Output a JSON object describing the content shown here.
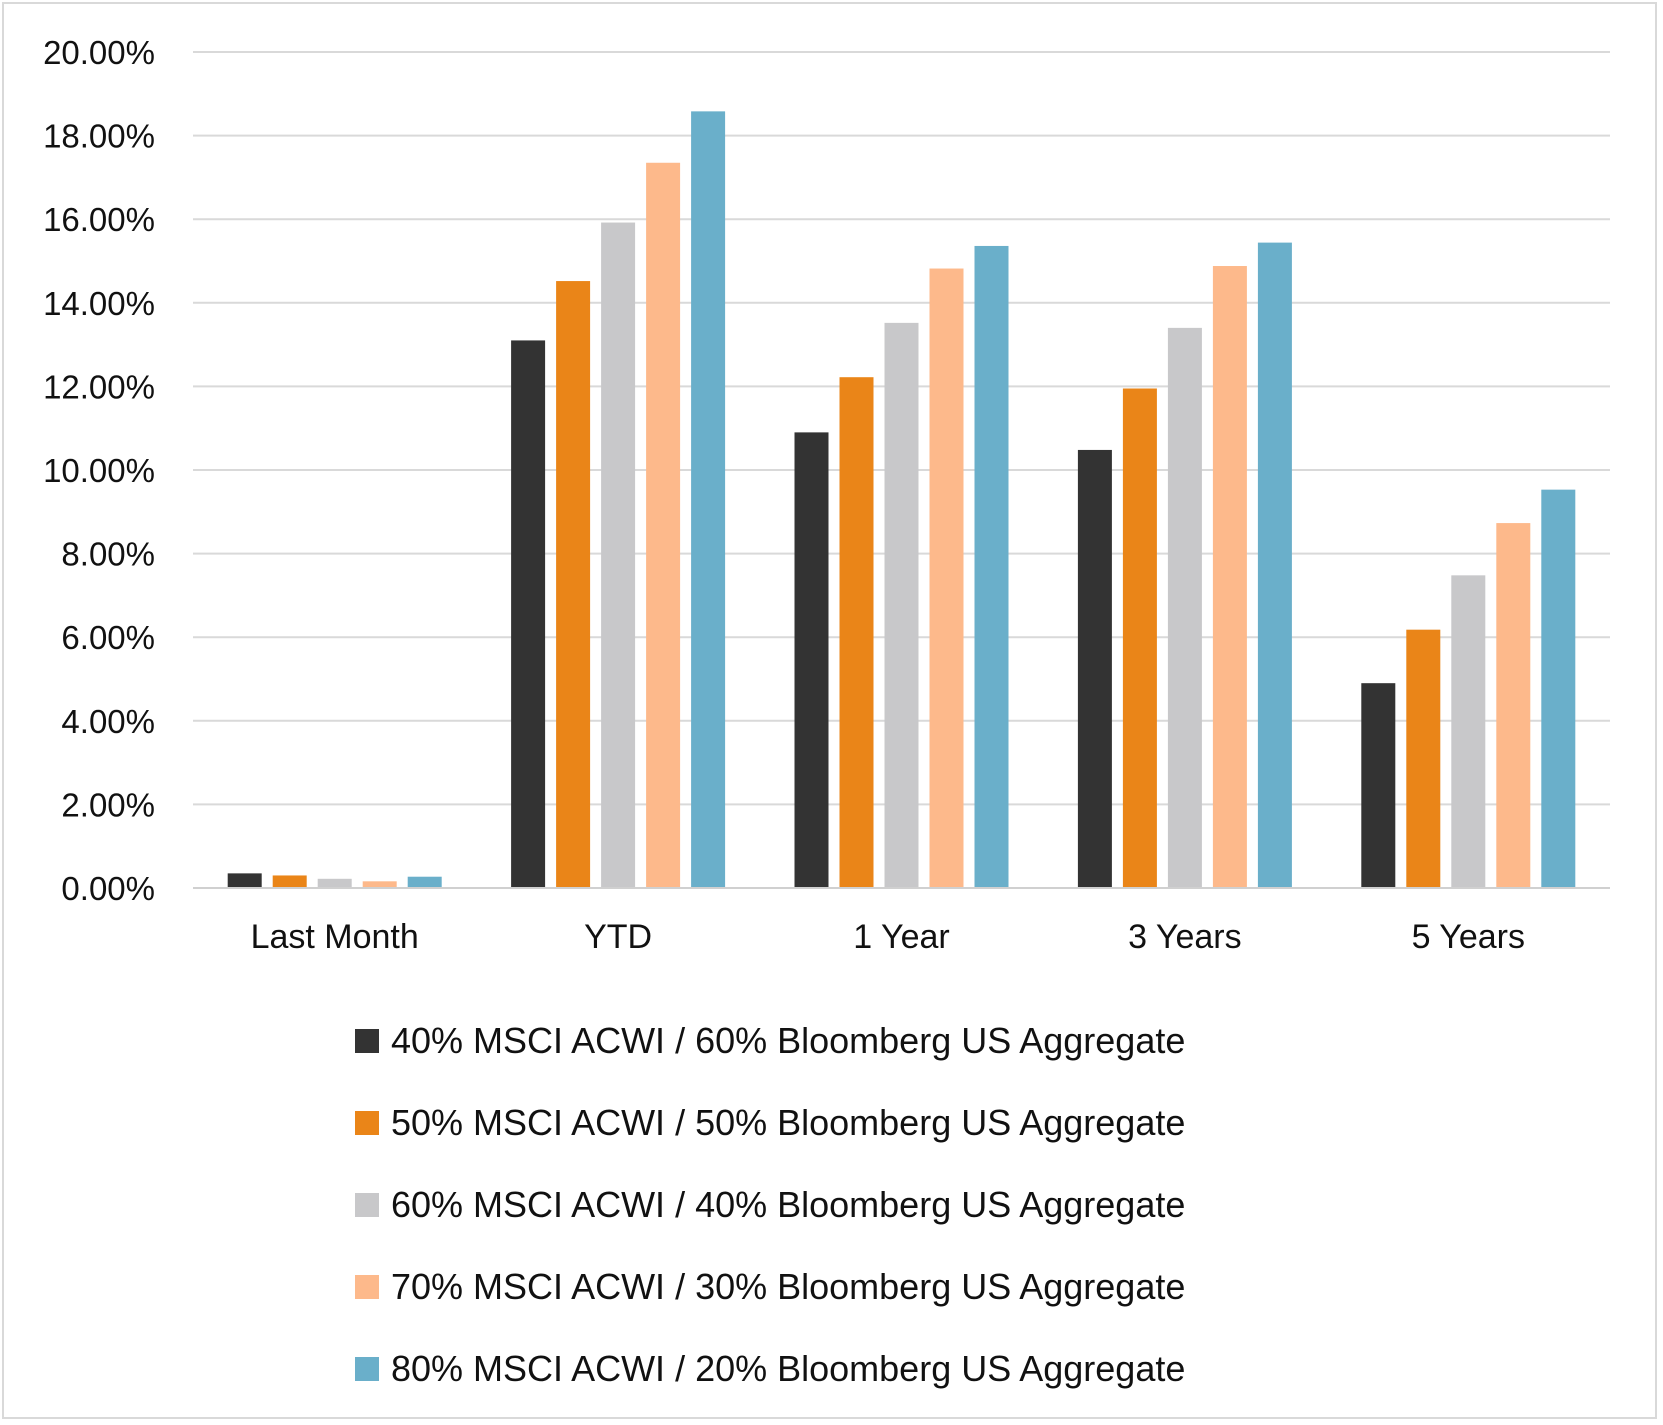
{
  "chart_data": {
    "type": "bar",
    "title": "",
    "xlabel": "",
    "ylabel": "",
    "ylim": [
      0,
      20
    ],
    "y_ticks": [
      "0.00%",
      "2.00%",
      "4.00%",
      "6.00%",
      "8.00%",
      "10.00%",
      "12.00%",
      "14.00%",
      "16.00%",
      "18.00%",
      "20.00%"
    ],
    "grid": true,
    "legend_position": "bottom",
    "categories": [
      "Last Month",
      "YTD",
      "1 Year",
      "3 Years",
      "5 Years"
    ],
    "series": [
      {
        "name": "40% MSCI ACWI / 60% Bloomberg US Aggregate",
        "color": "#333333",
        "values": [
          0.35,
          13.1,
          10.9,
          10.48,
          4.9
        ]
      },
      {
        "name": "50% MSCI ACWI / 50% Bloomberg US Aggregate",
        "color": "#ea8518",
        "values": [
          0.3,
          14.52,
          12.22,
          11.95,
          6.18
        ]
      },
      {
        "name": "60% MSCI ACWI / 40% Bloomberg US Aggregate",
        "color": "#c8c8ca",
        "values": [
          0.22,
          15.92,
          13.52,
          13.4,
          7.48
        ]
      },
      {
        "name": "70% MSCI ACWI / 30% Bloomberg US Aggregate",
        "color": "#fdb98b",
        "values": [
          0.16,
          17.35,
          14.82,
          14.88,
          8.73
        ]
      },
      {
        "name": "80% MSCI ACWI / 20% Bloomberg US Aggregate",
        "color": "#6aafca",
        "values": [
          0.27,
          18.58,
          15.36,
          15.44,
          9.53
        ]
      }
    ]
  }
}
